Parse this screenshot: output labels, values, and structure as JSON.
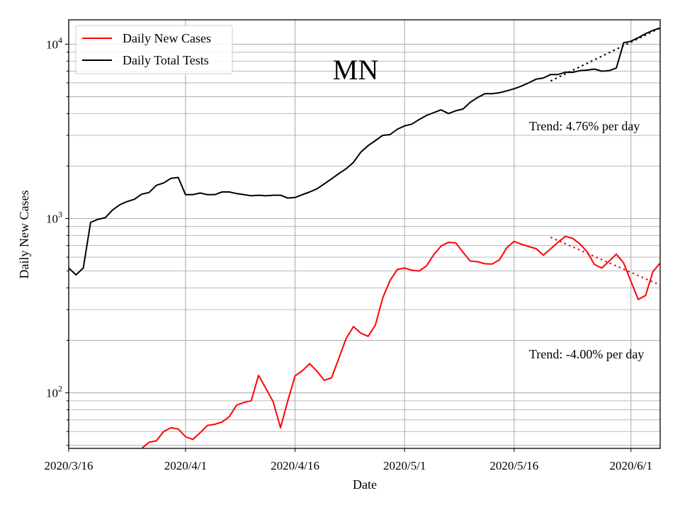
{
  "chart_data": {
    "type": "line",
    "title": "MN",
    "xlabel": "Date",
    "ylabel": "Daily New Cases",
    "yscale": "log",
    "ylim": [
      48,
      13800
    ],
    "xlim": [
      "2020-03-16",
      "2020-06-05"
    ],
    "grid": true,
    "x_ticks": [
      "2020/3/16",
      "2020/4/1",
      "2020/4/16",
      "2020/5/1",
      "2020/5/16",
      "2020/6/1"
    ],
    "y_ticks": [
      {
        "value": 100,
        "base": "10",
        "exp": "2"
      },
      {
        "value": 1000,
        "base": "10",
        "exp": "3"
      },
      {
        "value": 10000,
        "base": "10",
        "exp": "4"
      }
    ],
    "legend": {
      "position": "top-left"
    },
    "series": [
      {
        "name": "Daily New Cases",
        "color": "#ff0000",
        "start": "2020-03-26",
        "values": [
          48,
          52,
          53,
          60,
          63,
          62,
          56,
          54,
          59,
          65,
          66,
          68,
          73,
          85,
          88,
          90,
          126,
          106,
          89,
          63,
          90,
          125,
          134,
          147,
          133,
          118,
          122,
          158,
          205,
          240,
          220,
          211,
          245,
          350,
          440,
          510,
          520,
          505,
          500,
          535,
          620,
          695,
          730,
          725,
          640,
          570,
          565,
          550,
          548,
          580,
          680,
          740,
          712,
          690,
          672,
          616,
          670,
          730,
          790,
          770,
          715,
          645,
          545,
          520,
          568,
          625,
          555,
          435,
          343,
          362,
          495,
          555
        ]
      },
      {
        "name": "Daily Total Tests",
        "color": "#000000",
        "start": "2020-03-16",
        "values": [
          520,
          475,
          520,
          950,
          990,
          1010,
          1120,
          1200,
          1250,
          1290,
          1380,
          1410,
          1550,
          1600,
          1700,
          1720,
          1370,
          1370,
          1400,
          1370,
          1370,
          1420,
          1420,
          1390,
          1370,
          1350,
          1360,
          1350,
          1360,
          1360,
          1310,
          1320,
          1370,
          1420,
          1480,
          1580,
          1690,
          1810,
          1930,
          2100,
          2400,
          2620,
          2800,
          3000,
          3030,
          3250,
          3400,
          3480,
          3700,
          3900,
          4050,
          4200,
          4000,
          4150,
          4250,
          4650,
          4950,
          5200,
          5200,
          5270,
          5400,
          5550,
          5750,
          6000,
          6300,
          6400,
          6700,
          6700,
          6900,
          6900,
          7050,
          7100,
          7200,
          7000,
          7050,
          7300,
          10200,
          10400,
          10900,
          11500,
          12000,
          12400
        ]
      }
    ],
    "trend_lines": [
      {
        "color": "#000000",
        "x_start": "2020-05-21",
        "x_end": "2020-06-05",
        "y_start": 6150,
        "y_end": 12400,
        "label": "Trend: 4.76% per day"
      },
      {
        "color": "#ff0000",
        "x_start": "2020-05-21",
        "x_end": "2020-06-05",
        "y_start": 780,
        "y_end": 415,
        "label": "Trend: -4.00% per day"
      }
    ]
  }
}
